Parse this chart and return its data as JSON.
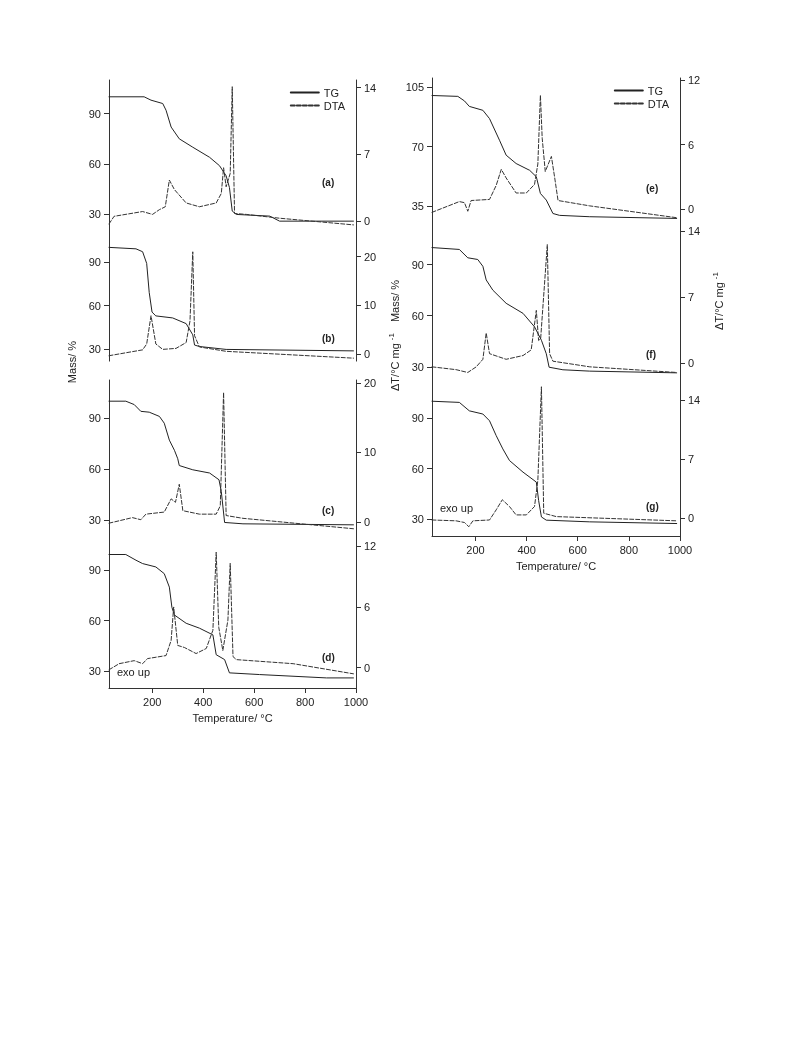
{
  "chart_data": [
    {
      "type": "line",
      "xlim": [
        30,
        1000
      ],
      "ylim": [
        13,
        110
      ],
      "yticks": [
        30,
        60,
        90
      ],
      "y2lim": [
        -2.3,
        14.8
      ],
      "y2ticks": [
        0,
        7,
        14
      ],
      "tick_labels": "y",
      "grid": false,
      "marker": "none",
      "legend": "top right",
      "annotations": [
        "(a)"
      ],
      "series": [
        {
          "name": "TG",
          "color": "#222222",
          "line_style": "solid",
          "x": [
            30,
            168,
            195,
            241,
            254,
            274,
            306,
            359,
            425,
            464,
            490,
            503,
            514,
            530,
            661,
            700,
            990
          ],
          "values": [
            100,
            100,
            98,
            96,
            92,
            82,
            75,
            70,
            64,
            59,
            53,
            46,
            32,
            30,
            29,
            26,
            26
          ]
        },
        {
          "name": "DTA",
          "color": "#333333",
          "line_style": "dashed",
          "axis": "y2",
          "x": [
            30,
            50,
            162,
            201,
            228,
            251,
            267,
            287,
            333,
            385,
            451,
            471,
            480,
            490,
            506,
            514,
            523,
            569,
            700,
            990
          ],
          "values": [
            -0.3,
            0.5,
            1.0,
            0.7,
            1.2,
            1.5,
            4.3,
            3.3,
            1.9,
            1.5,
            1.9,
            2.9,
            5.6,
            3.6,
            5.0,
            14.1,
            0.8,
            0.7,
            0.3,
            -0.4
          ]
        }
      ]
    },
    {
      "type": "line",
      "xlim": [
        30,
        1000
      ],
      "ylim": [
        22,
        103
      ],
      "yticks": [
        30,
        60,
        90
      ],
      "y2lim": [
        -1.4,
        22.8
      ],
      "y2ticks": [
        0,
        10,
        20
      ],
      "tick_labels": "y",
      "grid": false,
      "marker": "none",
      "ylabel": "Mass/ %",
      "y2label": "ΔT/°C mg$^{-1}$",
      "annotations": [
        "(b)"
      ],
      "series": [
        {
          "color": "#222222",
          "line_style": "solid",
          "x": [
            30,
            136,
            162,
            178,
            188,
            199,
            214,
            280,
            333,
            359,
            366,
            385,
            490,
            990
          ],
          "values": [
            100,
            99,
            97,
            89,
            69,
            55.6,
            53,
            51.6,
            47.7,
            40,
            33,
            32,
            30,
            29
          ]
        },
        {
          "color": "#333333",
          "line_style": "dashed",
          "axis": "y2",
          "x": [
            30,
            162,
            178,
            195,
            214,
            241,
            293,
            333,
            348,
            359,
            366,
            385,
            490,
            990
          ],
          "values": [
            -0.3,
            0.9,
            2.1,
            7.9,
            2.1,
            1.0,
            1.2,
            2.4,
            6.8,
            21,
            3.8,
            1.5,
            0.6,
            -0.8
          ]
        }
      ]
    },
    {
      "type": "line",
      "xlim": [
        30,
        1000
      ],
      "ylim": [
        21,
        112.5
      ],
      "yticks": [
        30,
        60,
        90
      ],
      "y2lim": [
        -1.9,
        20.4
      ],
      "y2ticks": [
        0,
        10,
        20
      ],
      "tick_labels": "y",
      "grid": false,
      "marker": "none",
      "annotations": [
        "(c)"
      ],
      "series": [
        {
          "color": "#222222",
          "line_style": "solid",
          "x": [
            30,
            96,
            129,
            155,
            188,
            228,
            247,
            267,
            287,
            300,
            306,
            359,
            425,
            462,
            471,
            484,
            556,
            990
          ],
          "values": [
            100,
            100,
            98,
            94,
            93.5,
            91,
            87,
            77,
            71,
            66,
            62,
            59.5,
            57.6,
            53.6,
            46.7,
            28.4,
            27.6,
            27
          ]
        },
        {
          "color": "#333333",
          "line_style": "dashed",
          "axis": "y2",
          "x": [
            30,
            122,
            155,
            175,
            247,
            274,
            291,
            306,
            320,
            385,
            451,
            467,
            480,
            490,
            556,
            990
          ],
          "values": [
            -0.2,
            0.6,
            0.3,
            1.1,
            1.4,
            3.3,
            2.8,
            5.4,
            1.6,
            1.1,
            1.1,
            2.3,
            18.6,
            0.9,
            0.5,
            -1.0
          ]
        }
      ]
    },
    {
      "type": "line",
      "xlim": [
        30,
        1000
      ],
      "xticks": [
        200,
        400,
        600,
        800,
        1000
      ],
      "ylim": [
        20,
        111
      ],
      "yticks": [
        30,
        60,
        90
      ],
      "y2lim": [
        -2,
        13.1
      ],
      "y2ticks": [
        0,
        6,
        12
      ],
      "xlabel": "Temperature/ °C",
      "grid": false,
      "marker": "none",
      "annotations": [
        "(d)",
        "exo up"
      ],
      "series": [
        {
          "color": "#222222",
          "line_style": "solid",
          "x": [
            30,
            96,
            136,
            162,
            214,
            247,
            267,
            277,
            287,
            333,
            385,
            438,
            451,
            484,
            503,
            621,
            884,
            990
          ],
          "values": [
            99.4,
            99.4,
            96,
            94,
            92,
            88,
            80,
            68,
            63.4,
            58.5,
            55.6,
            51.6,
            39.8,
            36.9,
            29,
            28,
            26,
            26
          ]
        },
        {
          "color": "#333333",
          "line_style": "dashed",
          "axis": "y2",
          "x": [
            30,
            70,
            129,
            162,
            181,
            254,
            274,
            284,
            300,
            326,
            372,
            412,
            438,
            451,
            461,
            477,
            497,
            506,
            517,
            530,
            753,
            990
          ],
          "values": [
            -0.2,
            0.4,
            0.7,
            0.4,
            0.9,
            1.2,
            2.7,
            6.0,
            2.2,
            2.0,
            1.4,
            1.9,
            3.7,
            11.4,
            4.0,
            1.7,
            4.7,
            10.3,
            1.1,
            0.8,
            0.4,
            -0.6
          ]
        }
      ]
    },
    {
      "type": "line",
      "xlim": [
        30,
        1000
      ],
      "ylim": [
        25.6,
        110.3
      ],
      "yticks": [
        35,
        70,
        105
      ],
      "y2lim": [
        -1.2,
        12.2
      ],
      "y2ticks": [
        0,
        6,
        12
      ],
      "tick_labels": "y",
      "grid": false,
      "marker": "none",
      "legend": "top right",
      "annotations": [
        "(e)"
      ],
      "series": [
        {
          "name": "TG",
          "color": "#222222",
          "line_style": "solid",
          "x": [
            30,
            131,
            157,
            176,
            229,
            255,
            294,
            320,
            359,
            412,
            438,
            454,
            477,
            503,
            529,
            647,
            987
          ],
          "values": [
            100,
            99.5,
            96.8,
            93.6,
            91.3,
            86.4,
            73.7,
            64.9,
            60,
            56,
            52.2,
            42.4,
            38.5,
            30.6,
            29.5,
            28.7,
            27.7
          ]
        },
        {
          "name": "DTA",
          "color": "#333333",
          "line_style": "dashed",
          "axis": "y2",
          "x": [
            30,
            137,
            157,
            170,
            183,
            255,
            281,
            301,
            320,
            359,
            399,
            431,
            444,
            454,
            461,
            473,
            497,
            510,
            523,
            647,
            987
          ],
          "values": [
            -0.3,
            0.7,
            0.6,
            -0.2,
            0.8,
            0.9,
            2.2,
            3.7,
            2.9,
            1.5,
            1.5,
            2.3,
            4.2,
            10.6,
            6.6,
            3.5,
            4.9,
            2.9,
            0.8,
            0.3,
            -0.8
          ]
        }
      ]
    },
    {
      "type": "line",
      "xlim": [
        30,
        1000
      ],
      "ylim": [
        22.3,
        115
      ],
      "yticks": [
        30,
        60,
        90
      ],
      "y2lim": [
        -1.8,
        15
      ],
      "y2ticks": [
        0,
        7,
        14
      ],
      "tick_labels": "y",
      "grid": false,
      "marker": "none",
      "ylabel": "Mass/ %",
      "y2label": "ΔT/°C mg$^{-1}$",
      "annotations": [
        "(f)"
      ],
      "series": [
        {
          "color": "#222222",
          "line_style": "solid",
          "x": [
            30,
            137,
            170,
            209,
            229,
            242,
            268,
            320,
            386,
            431,
            458,
            477,
            488,
            542,
            647,
            987
          ],
          "values": [
            100,
            98.9,
            94,
            93,
            89,
            81,
            75,
            67.3,
            61.4,
            53.5,
            45.6,
            37.7,
            29.8,
            28.3,
            27.5,
            26.5
          ]
        },
        {
          "color": "#333333",
          "line_style": "dashed",
          "axis": "y2",
          "x": [
            30,
            124,
            170,
            203,
            229,
            242,
            255,
            320,
            386,
            418,
            438,
            447,
            455,
            481,
            490,
            503,
            647,
            987
          ],
          "values": [
            -0.4,
            -0.7,
            -1.0,
            -0.4,
            0.4,
            3.2,
            1.0,
            0.4,
            0.8,
            1.4,
            5.6,
            2.4,
            2.6,
            12.6,
            1.0,
            0.2,
            -0.4,
            -1.0
          ]
        }
      ]
    },
    {
      "type": "line",
      "xlim": [
        30,
        1000
      ],
      "xticks": [
        200,
        400,
        600,
        800,
        1000
      ],
      "ylim": [
        20,
        112.6
      ],
      "yticks": [
        30,
        60,
        90
      ],
      "y2lim": [
        -2.1,
        16.4
      ],
      "y2ticks": [
        0,
        7,
        14
      ],
      "xlabel": "Temperature/ °C",
      "grid": false,
      "marker": "none",
      "annotations": [
        "(g)",
        "exo up"
      ],
      "series": [
        {
          "color": "#222222",
          "line_style": "solid",
          "x": [
            30,
            137,
            176,
            229,
            255,
            281,
            307,
            333,
            386,
            438,
            447,
            458,
            477,
            647,
            987
          ],
          "values": [
            100,
            99.3,
            94.3,
            92.4,
            88.4,
            79.6,
            71.7,
            64.8,
            57.9,
            52,
            41.1,
            31.3,
            29.4,
            28.4,
            27.4
          ]
        },
        {
          "color": "#333333",
          "line_style": "dashed",
          "axis": "y2",
          "x": [
            30,
            124,
            157,
            174,
            190,
            255,
            281,
            305,
            333,
            359,
            399,
            431,
            444,
            458,
            467,
            516,
            987
          ],
          "values": [
            -0.2,
            -0.3,
            -0.5,
            -1.0,
            -0.3,
            -0.2,
            1.0,
            2.2,
            1.4,
            0.4,
            0.4,
            1.4,
            4.5,
            15.6,
            0.6,
            0.2,
            -0.3
          ]
        }
      ]
    }
  ]
}
